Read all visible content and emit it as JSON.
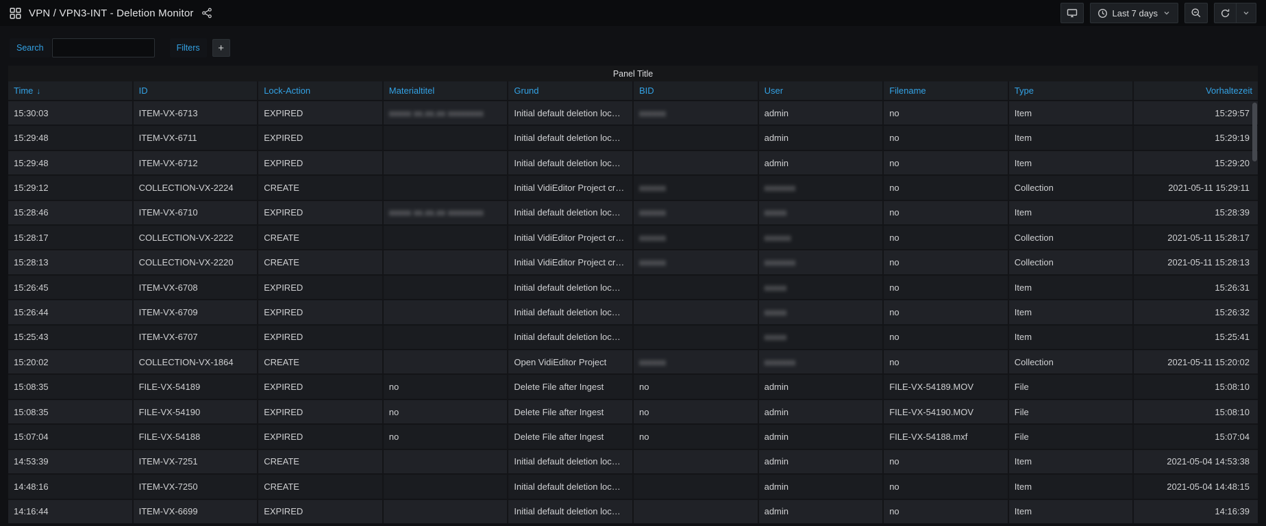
{
  "colors": {
    "accent": "#33a2e5",
    "navbar_bg": "#0b0c0e",
    "panel_bg": "#161719",
    "row_bg": "#1d1f24",
    "text": "#d0d1d3"
  },
  "navbar": {
    "title": "VPN / VPN3-INT - Deletion Monitor",
    "time_range_label": "Last 7 days"
  },
  "submenu": {
    "search_label": "Search",
    "search_value": "",
    "filters_label": "Filters",
    "add_filter_label": "+"
  },
  "panel": {
    "title": "Panel Title"
  },
  "table": {
    "sort": {
      "column": "time",
      "direction": "desc",
      "arrow": "↓"
    },
    "columns": [
      {
        "key": "time",
        "label": "Time",
        "align": "left"
      },
      {
        "key": "id",
        "label": "ID",
        "align": "left"
      },
      {
        "key": "lock_action",
        "label": "Lock-Action",
        "align": "left"
      },
      {
        "key": "materialtitel",
        "label": "Materialtitel",
        "align": "left"
      },
      {
        "key": "grund",
        "label": "Grund",
        "align": "left"
      },
      {
        "key": "bid",
        "label": "BID",
        "align": "left"
      },
      {
        "key": "user",
        "label": "User",
        "align": "left"
      },
      {
        "key": "filename",
        "label": "Filename",
        "align": "left"
      },
      {
        "key": "type",
        "label": "Type",
        "align": "left"
      },
      {
        "key": "vorhaltezeit",
        "label": "Vorhaltezeit",
        "align": "right"
      }
    ],
    "rows": [
      [
        "15:30:03",
        "ITEM-VX-6713",
        "EXPIRED",
        {
          "blur": "xxxxx xx.xx.xx xxxxxxxx"
        },
        "Initial default deletion loc…",
        {
          "blur": "xxxxxx"
        },
        "admin",
        "no",
        "Item",
        "15:29:57"
      ],
      [
        "15:29:48",
        "ITEM-VX-6711",
        "EXPIRED",
        "",
        "Initial default deletion loc…",
        "",
        "admin",
        "no",
        "Item",
        "15:29:19"
      ],
      [
        "15:29:48",
        "ITEM-VX-6712",
        "EXPIRED",
        "",
        "Initial default deletion loc…",
        "",
        "admin",
        "no",
        "Item",
        "15:29:20"
      ],
      [
        "15:29:12",
        "COLLECTION-VX-2224",
        "CREATE",
        "",
        "Initial VidiEditor Project cr…",
        {
          "blur": "xxxxxx"
        },
        {
          "blur": "xxxxxxx"
        },
        "no",
        "Collection",
        "2021-05-11 15:29:11"
      ],
      [
        "15:28:46",
        "ITEM-VX-6710",
        "EXPIRED",
        {
          "blur": "xxxxx xx.xx.xx xxxxxxxx"
        },
        "Initial default deletion loc…",
        {
          "blur": "xxxxxx"
        },
        {
          "blur": "xxxxx"
        },
        "no",
        "Item",
        "15:28:39"
      ],
      [
        "15:28:17",
        "COLLECTION-VX-2222",
        "CREATE",
        "",
        "Initial VidiEditor Project cr…",
        {
          "blur": "xxxxxx"
        },
        {
          "blur": "xxxxxx"
        },
        "no",
        "Collection",
        "2021-05-11 15:28:17"
      ],
      [
        "15:28:13",
        "COLLECTION-VX-2220",
        "CREATE",
        "",
        "Initial VidiEditor Project cr…",
        {
          "blur": "xxxxxx"
        },
        {
          "blur": "xxxxxxx"
        },
        "no",
        "Collection",
        "2021-05-11 15:28:13"
      ],
      [
        "15:26:45",
        "ITEM-VX-6708",
        "EXPIRED",
        "",
        "Initial default deletion loc…",
        "",
        {
          "blur": "xxxxx"
        },
        "no",
        "Item",
        "15:26:31"
      ],
      [
        "15:26:44",
        "ITEM-VX-6709",
        "EXPIRED",
        "",
        "Initial default deletion loc…",
        "",
        {
          "blur": "xxxxx"
        },
        "no",
        "Item",
        "15:26:32"
      ],
      [
        "15:25:43",
        "ITEM-VX-6707",
        "EXPIRED",
        "",
        "Initial default deletion loc…",
        "",
        {
          "blur": "xxxxx"
        },
        "no",
        "Item",
        "15:25:41"
      ],
      [
        "15:20:02",
        "COLLECTION-VX-1864",
        "CREATE",
        "",
        "Open VidiEditor Project",
        {
          "blur": "xxxxxx"
        },
        {
          "blur": "xxxxxxx"
        },
        "no",
        "Collection",
        "2021-05-11 15:20:02"
      ],
      [
        "15:08:35",
        "FILE-VX-54189",
        "EXPIRED",
        "no",
        "Delete File after Ingest",
        "no",
        "admin",
        "FILE-VX-54189.MOV",
        "File",
        "15:08:10"
      ],
      [
        "15:08:35",
        "FILE-VX-54190",
        "EXPIRED",
        "no",
        "Delete File after Ingest",
        "no",
        "admin",
        "FILE-VX-54190.MOV",
        "File",
        "15:08:10"
      ],
      [
        "15:07:04",
        "FILE-VX-54188",
        "EXPIRED",
        "no",
        "Delete File after Ingest",
        "no",
        "admin",
        "FILE-VX-54188.mxf",
        "File",
        "15:07:04"
      ],
      [
        "14:53:39",
        "ITEM-VX-7251",
        "CREATE",
        "",
        "Initial default deletion loc…",
        "",
        "admin",
        "no",
        "Item",
        "2021-05-04 14:53:38"
      ],
      [
        "14:48:16",
        "ITEM-VX-7250",
        "CREATE",
        "",
        "Initial default deletion loc…",
        "",
        "admin",
        "no",
        "Item",
        "2021-05-04 14:48:15"
      ],
      [
        "14:16:44",
        "ITEM-VX-6699",
        "EXPIRED",
        "",
        "Initial default deletion loc…",
        "",
        "admin",
        "no",
        "Item",
        "14:16:39"
      ]
    ]
  }
}
